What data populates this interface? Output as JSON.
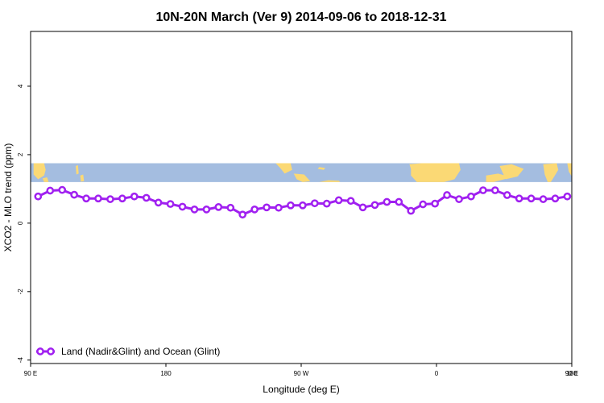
{
  "chart_data": {
    "type": "line",
    "title": "10N-20N March (Ver 9)   2014-09-06 to 2018-12-31",
    "xlabel": "Longitude (deg E)",
    "ylabel": "XCO2 - MLO trend (ppm)",
    "x_tick_labels": [
      "90 E",
      "180",
      "90 W",
      "0",
      "90 E",
      "180"
    ],
    "y_tick_labels": [
      "-4",
      "-2",
      "0",
      "2",
      "4"
    ],
    "xlim_deg_east": [
      90,
      450
    ],
    "ylim": [
      -4.1,
      5.6
    ],
    "grid": false,
    "legend_position": "bottom-left",
    "map_strip_y_range": [
      1.2,
      1.75
    ],
    "colors": {
      "series": "#a020f0",
      "ocean": "#a4bde0",
      "land": "#fbd975"
    },
    "series": [
      {
        "name": "Land (Nadir&Glint) and Ocean (Glint)",
        "x": [
          95,
          103,
          111,
          119,
          127,
          135,
          143,
          151,
          159,
          167,
          175,
          183,
          191,
          199,
          207,
          215,
          223,
          231,
          239,
          247,
          255,
          263,
          271,
          279,
          287,
          295,
          303,
          311,
          319,
          327,
          335,
          343,
          351,
          359,
          367,
          375,
          383,
          391,
          399,
          407,
          415,
          423,
          431,
          439,
          447
        ],
        "values": [
          0.78,
          0.95,
          0.97,
          0.83,
          0.72,
          0.72,
          0.7,
          0.72,
          0.78,
          0.74,
          0.6,
          0.56,
          0.48,
          0.4,
          0.4,
          0.47,
          0.45,
          0.25,
          0.4,
          0.46,
          0.45,
          0.52,
          0.52,
          0.58,
          0.57,
          0.67,
          0.65,
          0.46,
          0.53,
          0.62,
          0.62,
          0.36,
          0.55,
          0.57,
          0.82,
          0.7,
          0.78,
          0.96,
          0.96,
          0.82,
          0.72,
          0.72,
          0.7,
          0.72,
          0.78
        ]
      }
    ]
  }
}
